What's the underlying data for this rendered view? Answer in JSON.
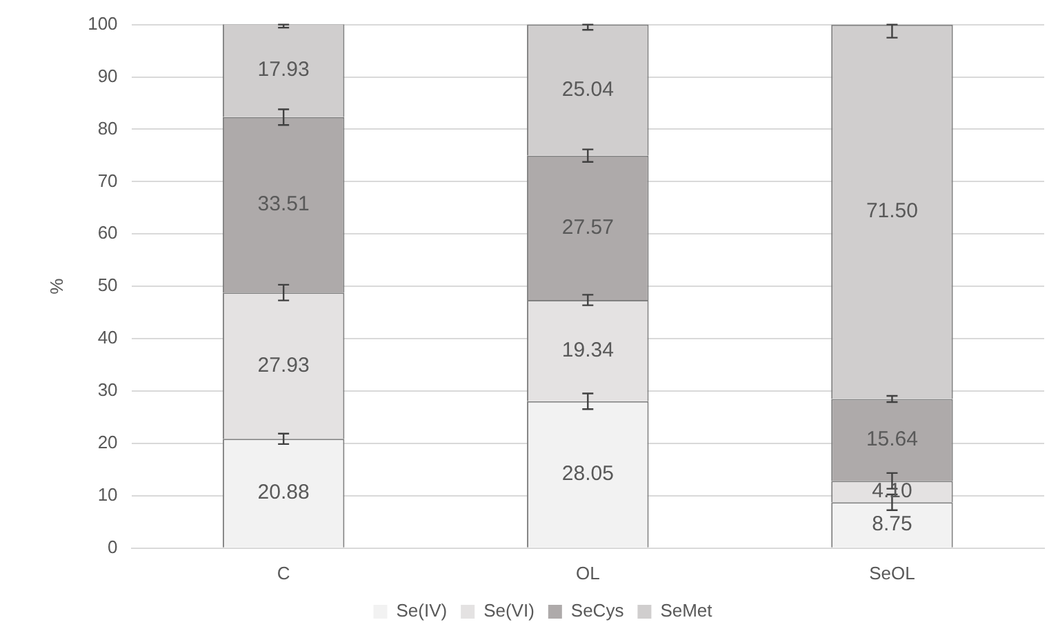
{
  "chart_data": {
    "type": "bar",
    "stacked": true,
    "ylabel": "%",
    "categories": [
      "C",
      "OL",
      "SeOL"
    ],
    "series": [
      {
        "name": "Se(IV)",
        "color": "#f2f2f2",
        "values": [
          20.88,
          28.05,
          8.75
        ],
        "value_labels": [
          "20.88",
          "28.05",
          "8.75"
        ],
        "errors": [
          1,
          1.5,
          1.5
        ]
      },
      {
        "name": "Se(VI)",
        "color": "#e4e2e2",
        "values": [
          27.93,
          19.34,
          4.1
        ],
        "value_labels": [
          "27.93",
          "19.34",
          "4.10"
        ],
        "errors": [
          1.5,
          1,
          1.5
        ]
      },
      {
        "name": "SeCys",
        "color": "#aeaaaa",
        "values": [
          33.51,
          27.57,
          15.64
        ],
        "value_labels": [
          "33.51",
          "27.57",
          "15.64"
        ],
        "errors": [
          1.5,
          1.2,
          0.6
        ]
      },
      {
        "name": "SeMet",
        "color": "#d0cece",
        "values": [
          17.93,
          25.04,
          71.5
        ],
        "value_labels": [
          "17.93",
          "25.04",
          "71.50"
        ],
        "errors": [
          [
            99.4,
            100
          ],
          [
            99,
            100
          ],
          [
            97.5,
            100
          ]
        ]
      }
    ],
    "ylim": [
      0,
      100
    ],
    "yticks": [
      0,
      10,
      20,
      30,
      40,
      50,
      60,
      70,
      80,
      90,
      100
    ],
    "grid": "y",
    "legend": "bottom"
  }
}
